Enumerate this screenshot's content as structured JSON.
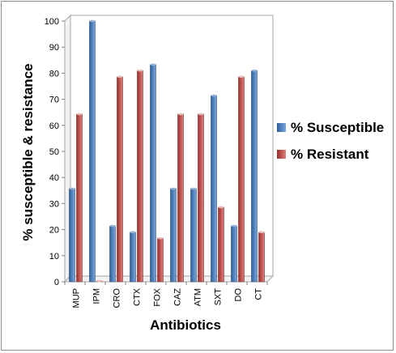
{
  "chart_data": {
    "type": "bar",
    "title": "",
    "xlabel": "Antibiotics",
    "ylabel": "% susceptible  & resistance",
    "ylim": [
      0,
      100
    ],
    "yticks": [
      0,
      10,
      20,
      30,
      40,
      50,
      60,
      70,
      80,
      90,
      100
    ],
    "categories": [
      "MUP",
      "IPM",
      "CRO",
      "CTX",
      "FOX",
      "CAZ",
      "ATM",
      "SXT",
      "DO",
      "CT"
    ],
    "series": [
      {
        "name": "% Susceptible",
        "color": "#4f81bd",
        "values": [
          35.7,
          100,
          21.4,
          19,
          83.3,
          35.7,
          35.7,
          71.4,
          21.4,
          81
        ]
      },
      {
        "name": "% Resistant",
        "color": "#c0504d",
        "values": [
          64.3,
          0,
          78.6,
          81,
          16.7,
          64.3,
          64.3,
          28.6,
          78.6,
          19
        ]
      }
    ],
    "grid": false,
    "legend_position": "right"
  }
}
